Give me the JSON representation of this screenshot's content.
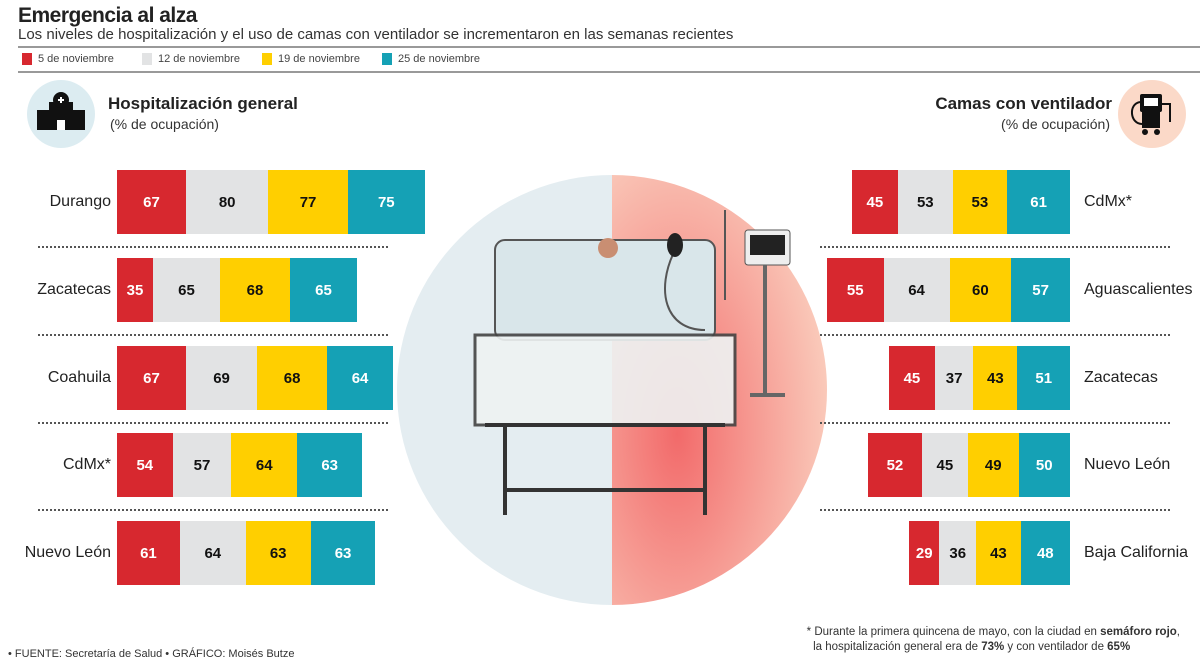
{
  "title": "Emergencia al alza",
  "subtitle": "Los niveles de hospitalización y el uso de camas con ventilador se incrementaron en las semanas recientes",
  "colors": {
    "5 de noviembre": "#d7282f",
    "12 de noviembre": "#e2e3e4",
    "19 de noviembre": "#ffcf00",
    "25 de noviembre": "#15a1b5"
  },
  "chart_data": [
    {
      "type": "bar",
      "orientation": "horizontal",
      "stacked": true,
      "title": "Hospitalización general",
      "subtitle": "(% de ocupación)",
      "icon": "hospital-icon",
      "categories": [
        "Durango",
        "Zacatecas",
        "Coahuila",
        "CdMx*",
        "Nuevo León"
      ],
      "series": [
        {
          "name": "5 de noviembre",
          "values": [
            67,
            35,
            67,
            54,
            61
          ]
        },
        {
          "name": "12 de noviembre",
          "values": [
            80,
            65,
            69,
            57,
            64
          ]
        },
        {
          "name": "19 de noviembre",
          "values": [
            77,
            68,
            68,
            64,
            63
          ]
        },
        {
          "name": "25 de noviembre",
          "values": [
            75,
            65,
            64,
            63,
            63
          ]
        }
      ]
    },
    {
      "type": "bar",
      "orientation": "horizontal",
      "stacked": true,
      "title": "Camas con ventilador",
      "subtitle": "(% de ocupación)",
      "icon": "ventilator-icon",
      "categories": [
        "CdMx*",
        "Aguascalientes",
        "Zacatecas",
        "Nuevo León",
        "Baja California"
      ],
      "series": [
        {
          "name": "5 de noviembre",
          "values": [
            45,
            55,
            45,
            52,
            29
          ]
        },
        {
          "name": "12 de noviembre",
          "values": [
            53,
            64,
            37,
            45,
            36
          ]
        },
        {
          "name": "19 de noviembre",
          "values": [
            53,
            60,
            43,
            49,
            43
          ]
        },
        {
          "name": "25 de noviembre",
          "values": [
            61,
            57,
            51,
            50,
            48
          ]
        }
      ]
    }
  ],
  "footer": "• FUENTE: Secretaría de Salud • GRÁFICO: Moisés Butze",
  "note": {
    "p1": "* Durante la primera quincena de mayo, con la ciudad en ",
    "b1": "semáforo rojo",
    ",": ",",
    "p2": "la hospitalización general era de ",
    "b2": "73%",
    "p3": " y con ventilador de ",
    "b3": "65%"
  }
}
